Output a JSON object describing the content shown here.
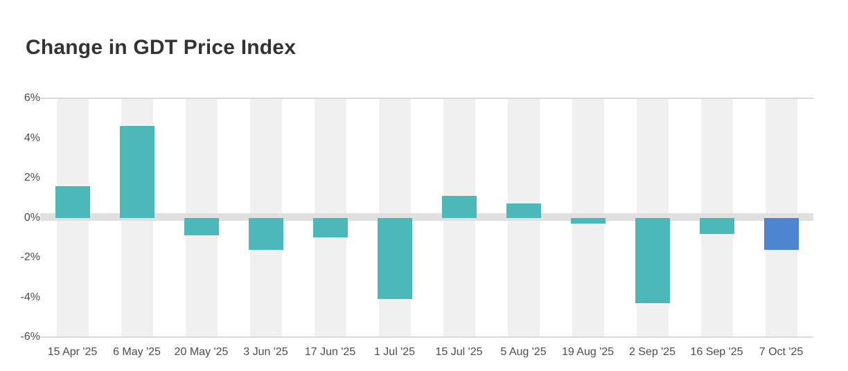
{
  "title": "Change in GDT Price Index",
  "chart_data": {
    "type": "bar",
    "title": "Change in GDT Price Index",
    "categories": [
      "15 Apr '25",
      "6 May '25",
      "20 May '25",
      "3 Jun '25",
      "17 Jun '25",
      "1 Jul '25",
      "15 Jul '25",
      "5 Aug '25",
      "19 Aug '25",
      "2 Sep '25",
      "16 Sep '25",
      "7 Oct '25"
    ],
    "values": [
      1.6,
      4.6,
      -0.9,
      -1.6,
      -1.0,
      -4.1,
      1.1,
      0.7,
      -0.3,
      -4.3,
      -0.8,
      -1.6
    ],
    "series_name": "Change in GDT Price Index (%)",
    "unit": "%",
    "xlabel": "",
    "ylabel": "",
    "ylim": [
      -6,
      6
    ],
    "ytick_step": 2,
    "ytick_labels": [
      "6%",
      "4%",
      "2%",
      "0%",
      "-2%",
      "-4%",
      "-6%"
    ],
    "legend": "none",
    "grid": "top and bottom plot borders plus thick zero baseline band; alternating light column stripes",
    "highlight_index": 11,
    "colors": {
      "bar": "#4db8ba",
      "highlight_bar": "#4c84d0",
      "column_stripe": "#f0f0f0",
      "zero_band": "#e0e0e0",
      "plot_border": "#dadada",
      "axis_text": "#4c4c4c",
      "title_text": "#333333",
      "background": "#ffffff"
    }
  }
}
